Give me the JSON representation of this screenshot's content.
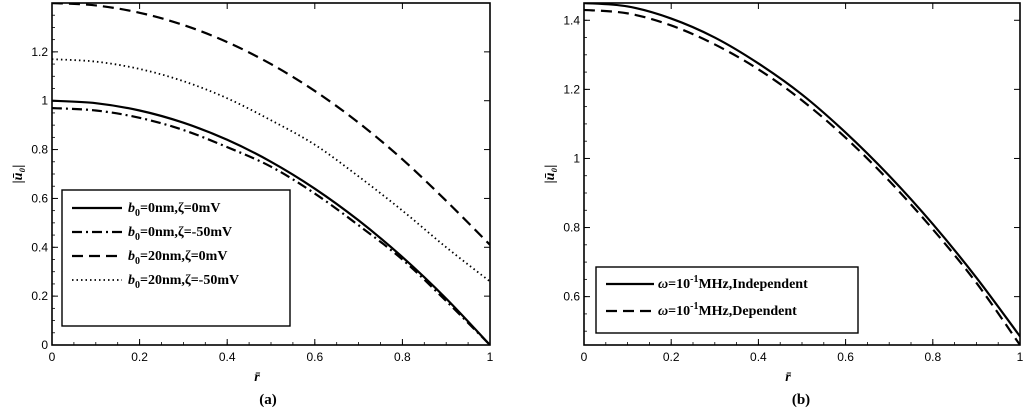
{
  "chart_data": [
    {
      "type": "line",
      "panel_label": "(a)",
      "xlabel": "r̄",
      "ylabel": "|ū₀|",
      "xlim": [
        0,
        1
      ],
      "ylim": [
        0,
        1.4
      ],
      "xticks": [
        "0",
        "0.2",
        "0.4",
        "0.6",
        "0.8",
        "1"
      ],
      "yticks": [
        "0",
        "0.2",
        "0.4",
        "0.6",
        "0.8",
        "1",
        "1.2"
      ],
      "legend_position": "bottom-left",
      "series": [
        {
          "name": "b0=0nm,ζ=0mV",
          "legend": {
            "sym": "b",
            "sub": "0",
            "rest": "=0nm,ζ=0mV"
          },
          "style": "solid",
          "x": [
            0,
            0.1,
            0.2,
            0.3,
            0.4,
            0.5,
            0.6,
            0.7,
            0.8,
            0.9,
            1.0
          ],
          "y": [
            1.0,
            0.99,
            0.96,
            0.91,
            0.84,
            0.75,
            0.64,
            0.51,
            0.36,
            0.19,
            0.0
          ]
        },
        {
          "name": "b0=0nm,ζ=-50mV",
          "legend": {
            "sym": "b",
            "sub": "0",
            "rest": "=0nm,ζ=-50mV"
          },
          "style": "dashdot",
          "x": [
            0,
            0.1,
            0.2,
            0.3,
            0.4,
            0.5,
            0.6,
            0.7,
            0.8,
            0.9,
            1.0
          ],
          "y": [
            0.97,
            0.96,
            0.93,
            0.88,
            0.81,
            0.73,
            0.62,
            0.49,
            0.35,
            0.18,
            0.0
          ]
        },
        {
          "name": "b0=20nm,ζ=0mV",
          "legend": {
            "sym": "b",
            "sub": "0",
            "rest": "=20nm,ζ=0mV"
          },
          "style": "dashed",
          "x": [
            0,
            0.1,
            0.2,
            0.3,
            0.4,
            0.5,
            0.6,
            0.7,
            0.8,
            0.9,
            1.0
          ],
          "y": [
            1.4,
            1.39,
            1.36,
            1.31,
            1.24,
            1.15,
            1.04,
            0.91,
            0.76,
            0.59,
            0.41
          ]
        },
        {
          "name": "b0=20nm,ζ=-50mV",
          "legend": {
            "sym": "b",
            "sub": "0",
            "rest": "=20nm,ζ=-50mV"
          },
          "style": "dotted",
          "x": [
            0,
            0.1,
            0.2,
            0.3,
            0.4,
            0.5,
            0.6,
            0.7,
            0.8,
            0.9,
            1.0
          ],
          "y": [
            1.17,
            1.16,
            1.13,
            1.08,
            1.01,
            0.92,
            0.82,
            0.69,
            0.55,
            0.4,
            0.26
          ]
        }
      ]
    },
    {
      "type": "line",
      "panel_label": "(b)",
      "xlabel": "r̄",
      "ylabel": "|ū₀|",
      "xlim": [
        0,
        1
      ],
      "ylim": [
        0.46,
        1.45
      ],
      "xticks": [
        "0",
        "0.2",
        "0.4",
        "0.6",
        "0.8",
        "1"
      ],
      "yticks": [
        "0.6",
        "0.8",
        "1",
        "1.2",
        "1.4"
      ],
      "legend_position": "bottom-left",
      "series": [
        {
          "name": "ω=10^-1MHz,Independent",
          "legend": {
            "sym": "ω",
            "pre": "=10",
            "sup": "-1",
            "rest": "MHz,Independent"
          },
          "style": "solid",
          "x": [
            0,
            0.1,
            0.2,
            0.3,
            0.4,
            0.5,
            0.6,
            0.7,
            0.8,
            0.9,
            1.0
          ],
          "y": [
            1.45,
            1.44,
            1.405,
            1.35,
            1.275,
            1.185,
            1.075,
            0.95,
            0.81,
            0.655,
            0.485
          ]
        },
        {
          "name": "ω=10^-1MHz,Dependent",
          "legend": {
            "sym": "ω",
            "pre": "=10",
            "sup": "-1",
            "rest": "MHz,Dependent"
          },
          "style": "dashed",
          "x": [
            0,
            0.1,
            0.2,
            0.3,
            0.4,
            0.5,
            0.6,
            0.7,
            0.8,
            0.9,
            1.0
          ],
          "y": [
            1.43,
            1.42,
            1.385,
            1.33,
            1.258,
            1.168,
            1.06,
            0.935,
            0.795,
            0.64,
            0.46
          ]
        }
      ]
    }
  ]
}
